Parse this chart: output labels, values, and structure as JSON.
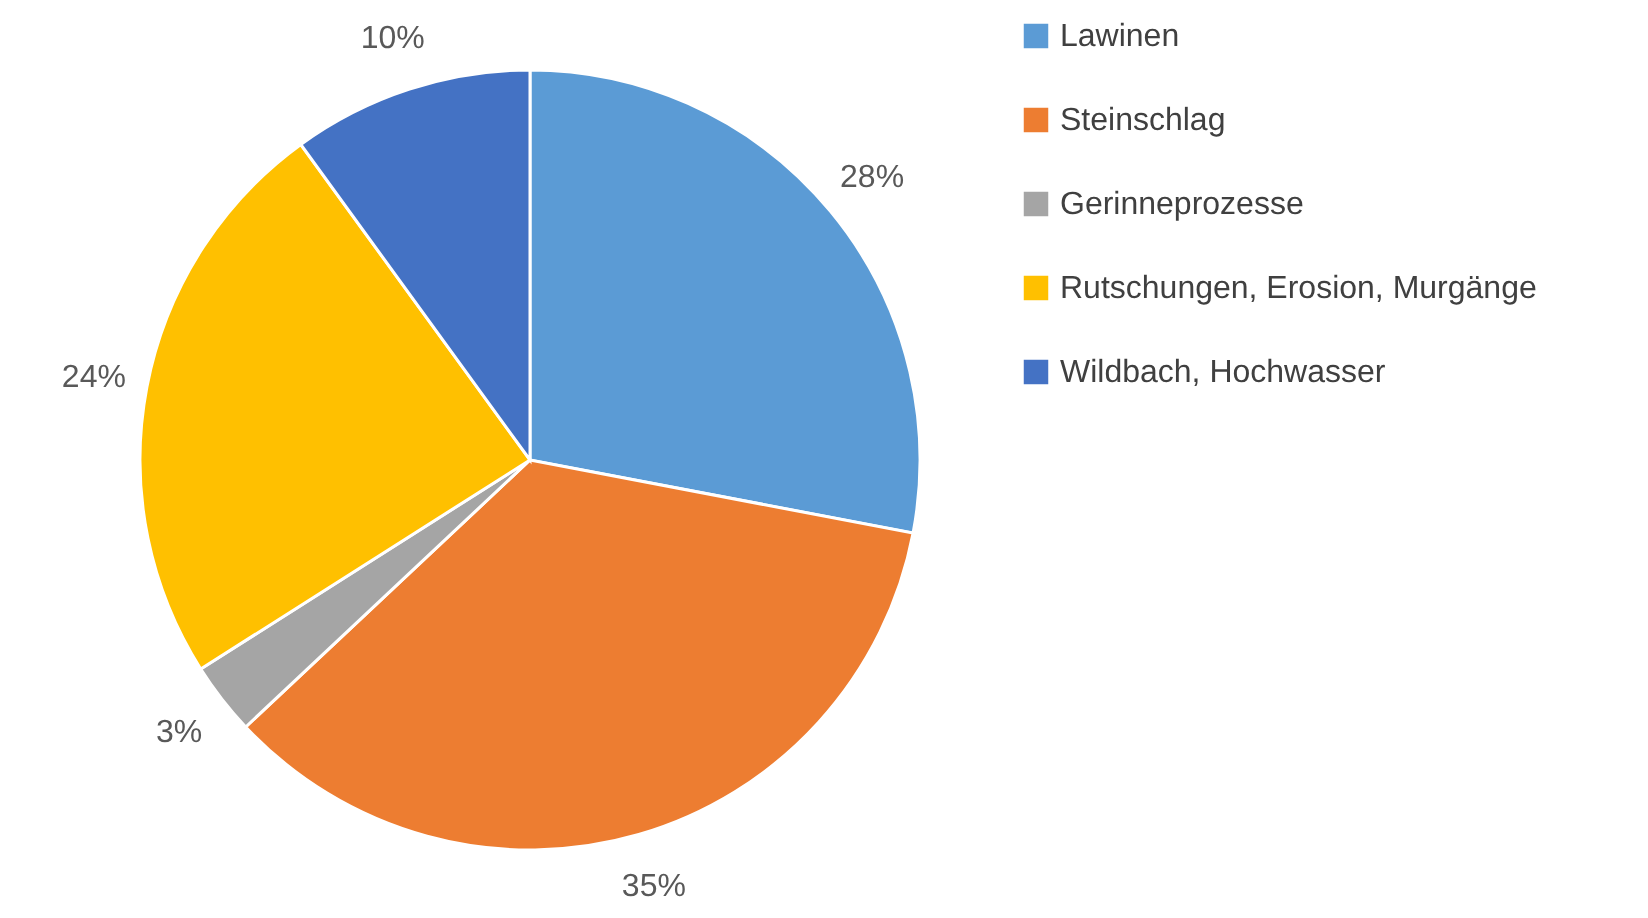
{
  "chart_data": {
    "type": "pie",
    "categories": [
      "Lawinen",
      "Steinschlag",
      "Gerinneprozesse",
      "Rutschungen, Erosion, Murgänge",
      "Wildbach, Hochwasser"
    ],
    "values": [
      28,
      35,
      3,
      24,
      10
    ],
    "value_labels": [
      "28%",
      "35%",
      "3%",
      "24%",
      "10%"
    ],
    "colors": [
      "#5b9bd5",
      "#ed7d31",
      "#a5a5a5",
      "#ffc000",
      "#4472c4"
    ],
    "legend": "right"
  }
}
